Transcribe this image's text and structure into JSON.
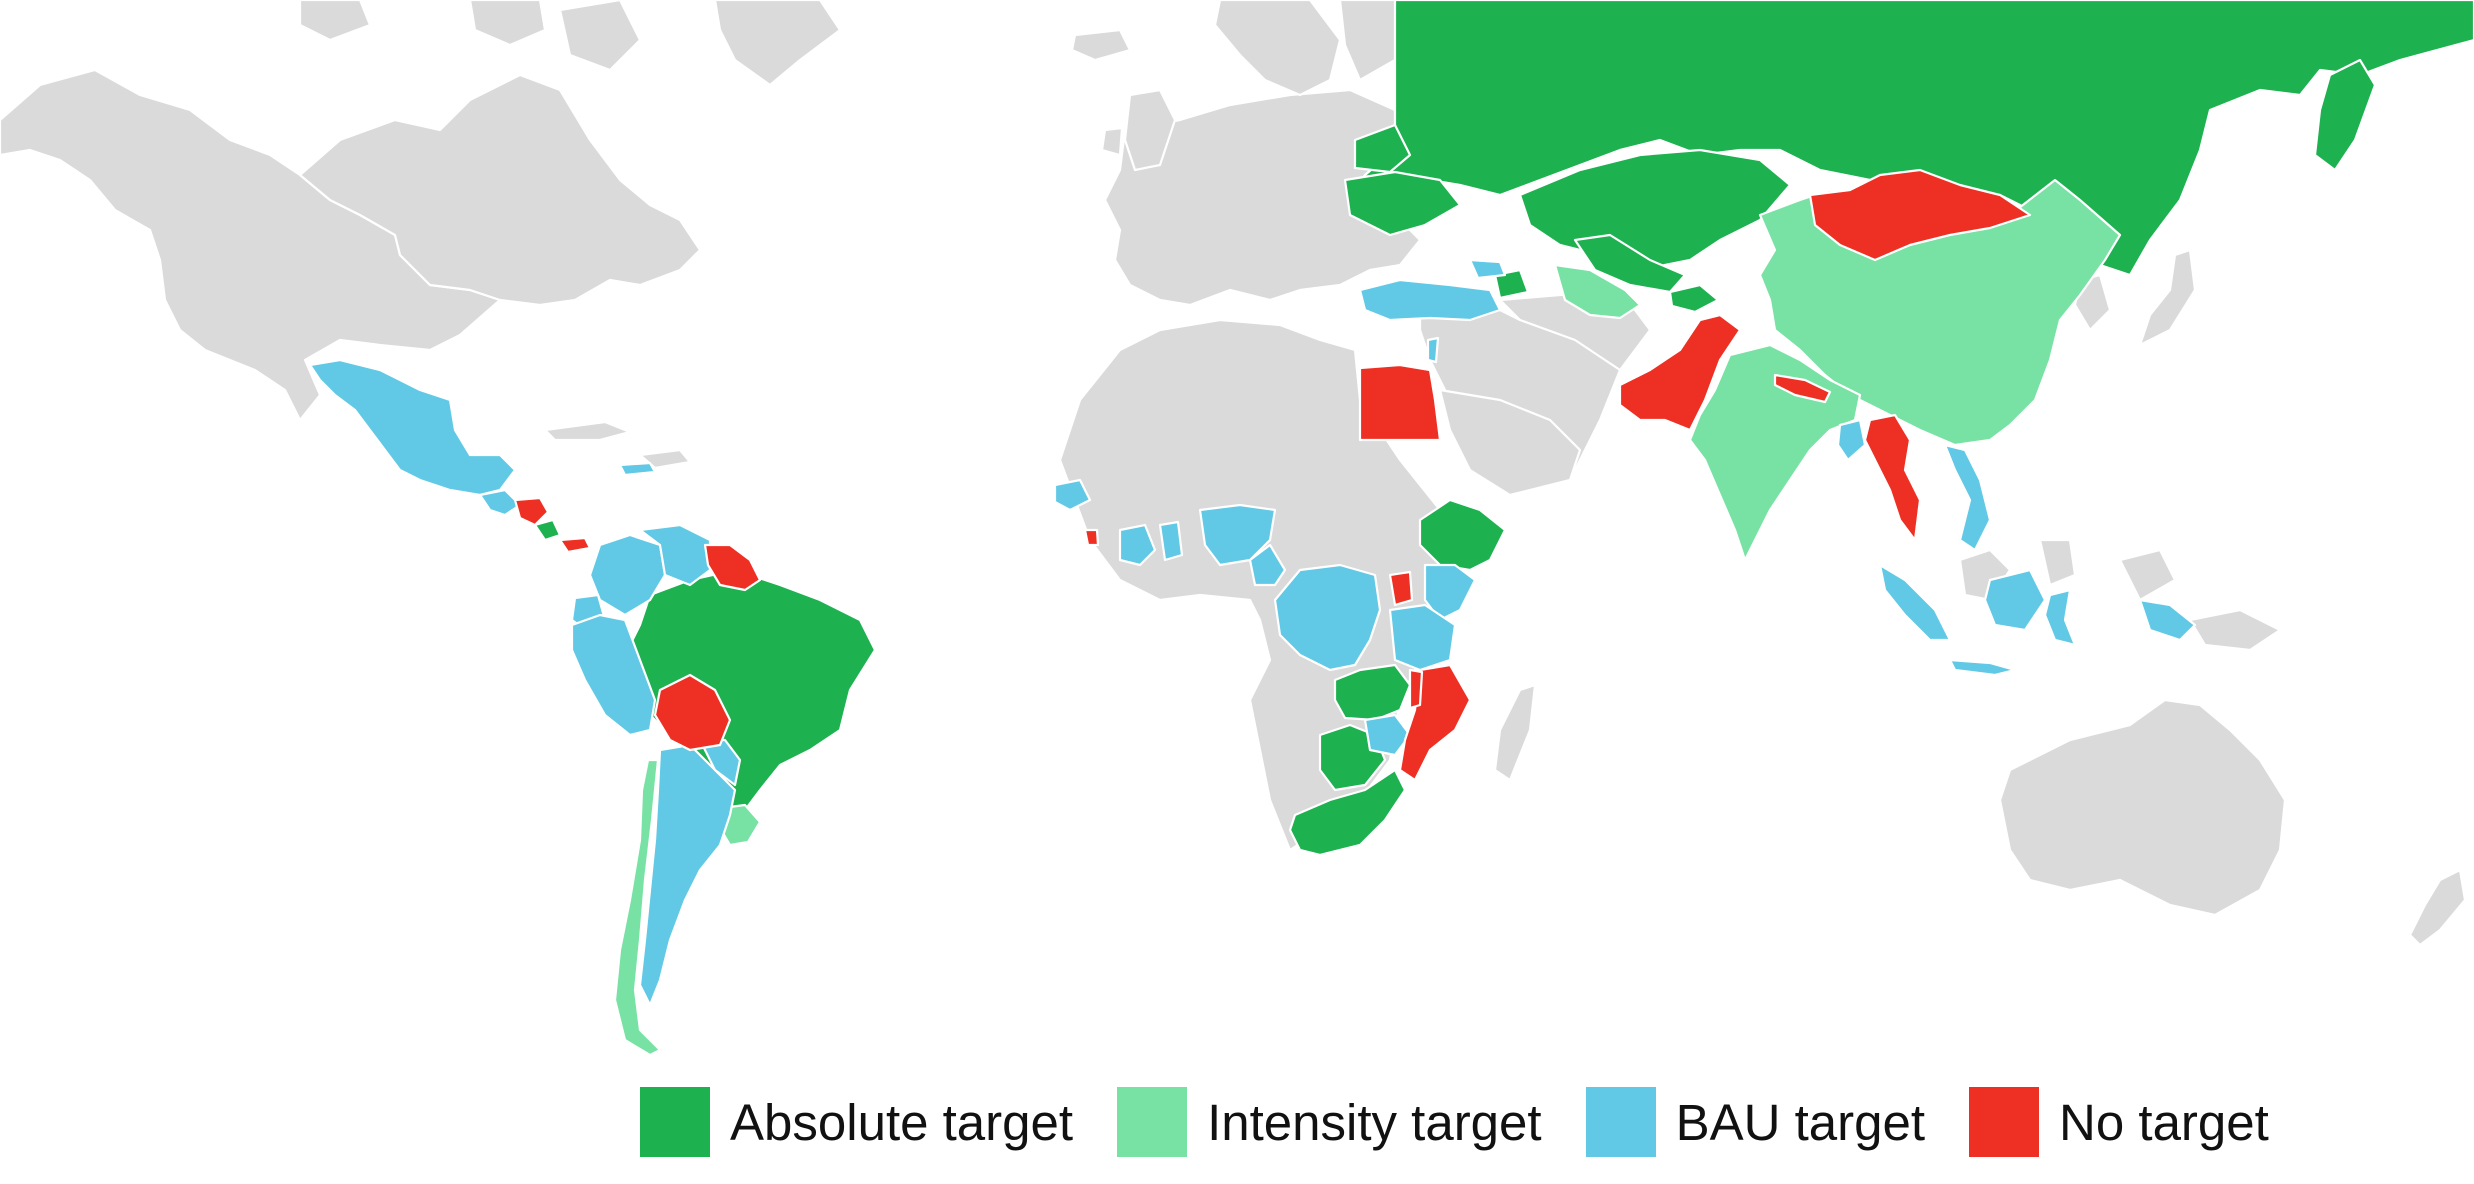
{
  "colors": {
    "absolute": "#1db150",
    "intensity": "#77e2a4",
    "bau": "#61c9e5",
    "none": "#ee3024",
    "no_data": "#dadada",
    "border": "#ffffff"
  },
  "legend": [
    {
      "key": "absolute",
      "label": "Absolute target"
    },
    {
      "key": "intensity",
      "label": "Intensity target"
    },
    {
      "key": "bau",
      "label": "BAU target"
    },
    {
      "key": "none",
      "label": "No target"
    }
  ],
  "countries": [
    {
      "name": "Russia",
      "category": "absolute"
    },
    {
      "name": "Ukraine",
      "category": "absolute"
    },
    {
      "name": "Belarus",
      "category": "absolute"
    },
    {
      "name": "Kazakhstan",
      "category": "absolute"
    },
    {
      "name": "Uzbekistan",
      "category": "absolute"
    },
    {
      "name": "Tajikistan",
      "category": "absolute"
    },
    {
      "name": "Brazil",
      "category": "absolute"
    },
    {
      "name": "Ethiopia",
      "category": "absolute"
    },
    {
      "name": "Zambia",
      "category": "absolute"
    },
    {
      "name": "Botswana",
      "category": "absolute"
    },
    {
      "name": "South Africa",
      "category": "absolute"
    },
    {
      "name": "Costa Rica",
      "category": "absolute"
    },
    {
      "name": "China",
      "category": "intensity"
    },
    {
      "name": "India",
      "category": "intensity"
    },
    {
      "name": "Chile",
      "category": "intensity"
    },
    {
      "name": "Uruguay",
      "category": "intensity"
    },
    {
      "name": "Turkmenistan",
      "category": "intensity"
    },
    {
      "name": "Mexico",
      "category": "bau"
    },
    {
      "name": "Argentina",
      "category": "bau"
    },
    {
      "name": "Peru",
      "category": "bau"
    },
    {
      "name": "Colombia",
      "category": "bau"
    },
    {
      "name": "Venezuela",
      "category": "bau"
    },
    {
      "name": "Ecuador",
      "category": "bau"
    },
    {
      "name": "Paraguay",
      "category": "bau"
    },
    {
      "name": "Turkey",
      "category": "bau"
    },
    {
      "name": "Israel",
      "category": "bau"
    },
    {
      "name": "DR Congo",
      "category": "bau"
    },
    {
      "name": "Tanzania",
      "category": "bau"
    },
    {
      "name": "Kenya",
      "category": "bau"
    },
    {
      "name": "Nigeria",
      "category": "bau"
    },
    {
      "name": "Cameroon",
      "category": "bau"
    },
    {
      "name": "Ghana",
      "category": "bau"
    },
    {
      "name": "Cote d'Ivoire",
      "category": "bau"
    },
    {
      "name": "Senegal",
      "category": "bau"
    },
    {
      "name": "Zimbabwe",
      "category": "bau"
    },
    {
      "name": "Indonesia",
      "category": "bau"
    },
    {
      "name": "Vietnam",
      "category": "bau"
    },
    {
      "name": "Bangladesh",
      "category": "bau"
    },
    {
      "name": "Georgia",
      "category": "bau"
    },
    {
      "name": "Mongolia",
      "category": "none"
    },
    {
      "name": "Pakistan",
      "category": "none"
    },
    {
      "name": "Egypt",
      "category": "none"
    },
    {
      "name": "Myanmar",
      "category": "none"
    },
    {
      "name": "Nepal",
      "category": "none"
    },
    {
      "name": "Bolivia",
      "category": "none"
    },
    {
      "name": "Mozambique",
      "category": "none"
    },
    {
      "name": "Malawi",
      "category": "none"
    },
    {
      "name": "Rwanda",
      "category": "none"
    },
    {
      "name": "Guyana",
      "category": "none"
    },
    {
      "name": "Suriname",
      "category": "none"
    },
    {
      "name": "Nicaragua",
      "category": "none"
    },
    {
      "name": "Liberia",
      "category": "none"
    }
  ]
}
